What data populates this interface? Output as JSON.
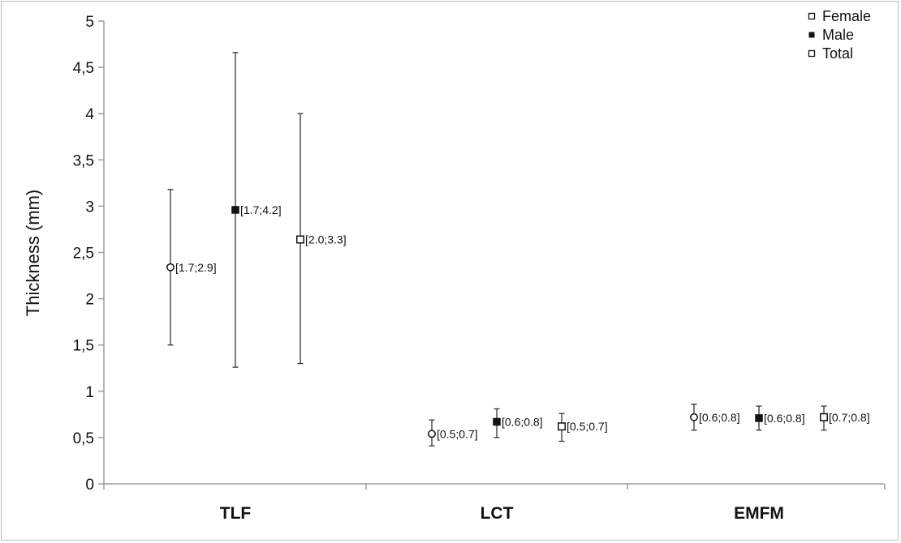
{
  "chart_data": {
    "type": "scatter",
    "title": "",
    "ylabel": "Thickness (mm)",
    "xlabel": "",
    "ylim": [
      0,
      5
    ],
    "yticks": [
      {
        "value": 0,
        "label": "0"
      },
      {
        "value": 0.5,
        "label": "0,5"
      },
      {
        "value": 1,
        "label": "1"
      },
      {
        "value": 1.5,
        "label": "1,5"
      },
      {
        "value": 2,
        "label": "2"
      },
      {
        "value": 2.5,
        "label": "2,5"
      },
      {
        "value": 3,
        "label": "3"
      },
      {
        "value": 3.5,
        "label": "3,5"
      },
      {
        "value": 4,
        "label": "4"
      },
      {
        "value": 4.5,
        "label": "4,5"
      },
      {
        "value": 5,
        "label": "5"
      }
    ],
    "categories": [
      "TLF",
      "LCT",
      "EMFM"
    ],
    "grid": false,
    "legend_position": "top-right",
    "series": [
      {
        "name": "Female",
        "marker": "open-circle",
        "points": [
          {
            "category": "TLF",
            "y": 2.34,
            "err_low": 1.5,
            "err_high": 3.18,
            "label": "[1.7;2.9]"
          },
          {
            "category": "LCT",
            "y": 0.54,
            "err_low": 0.41,
            "err_high": 0.69,
            "label": "[0.5;0.7]"
          },
          {
            "category": "EMFM",
            "y": 0.72,
            "err_low": 0.58,
            "err_high": 0.86,
            "label": "[0.6;0.8]"
          }
        ]
      },
      {
        "name": "Male",
        "marker": "filled-square",
        "points": [
          {
            "category": "TLF",
            "y": 2.96,
            "err_low": 1.26,
            "err_high": 4.66,
            "label": "[1.7;4.2]"
          },
          {
            "category": "LCT",
            "y": 0.67,
            "err_low": 0.5,
            "err_high": 0.81,
            "label": "[0.6;0.8]"
          },
          {
            "category": "EMFM",
            "y": 0.71,
            "err_low": 0.58,
            "err_high": 0.84,
            "label": "[0.6;0.8]"
          }
        ]
      },
      {
        "name": "Total",
        "marker": "open-square",
        "points": [
          {
            "category": "TLF",
            "y": 2.64,
            "err_low": 1.3,
            "err_high": 4.0,
            "label": "[2.0;3.3]"
          },
          {
            "category": "LCT",
            "y": 0.62,
            "err_low": 0.46,
            "err_high": 0.76,
            "label": "[0.5;0.7]"
          },
          {
            "category": "EMFM",
            "y": 0.72,
            "err_low": 0.58,
            "err_high": 0.84,
            "label": "[0.7;0.8]"
          }
        ]
      }
    ],
    "colors": {
      "marker": "#111111",
      "axis": "#9e9e9e",
      "errorbar": "#333333"
    }
  }
}
